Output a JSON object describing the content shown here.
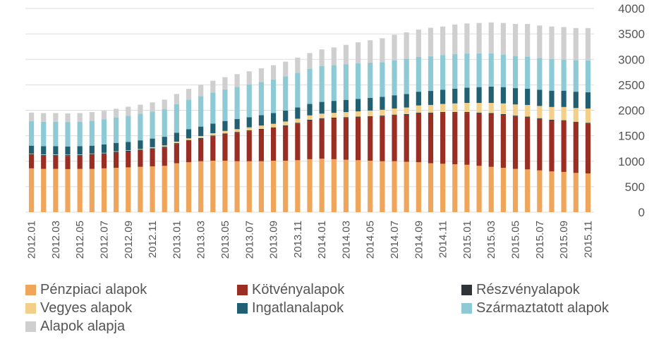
{
  "chart_data": {
    "type": "bar",
    "stacked": true,
    "title": "",
    "xlabel": "",
    "ylabel": "",
    "ylim": [
      0,
      4000
    ],
    "yticks": [
      0,
      500,
      1000,
      1500,
      2000,
      2500,
      3000,
      3500,
      4000
    ],
    "grid": true,
    "legend_position": "bottom",
    "categories": [
      "2012.01",
      "2012.02",
      "2012.03",
      "2012.04",
      "2012.05",
      "2012.06",
      "2012.07",
      "2012.08",
      "2012.09",
      "2012.10",
      "2012.11",
      "2012.12",
      "2013.01",
      "2013.02",
      "2013.03",
      "2013.04",
      "2013.05",
      "2013.06",
      "2013.07",
      "2013.08",
      "2013.09",
      "2013.10",
      "2013.11",
      "2013.12",
      "2014.01",
      "2014.02",
      "2014.03",
      "2014.04",
      "2014.05",
      "2014.06",
      "2014.07",
      "2014.08",
      "2014.09",
      "2014.10",
      "2014.11",
      "2014.12",
      "2015.01",
      "2015.02",
      "2015.03",
      "2015.04",
      "2015.05",
      "2015.06",
      "2015.07",
      "2015.08",
      "2015.09",
      "2015.10",
      "2015.11"
    ],
    "xtick_labels": [
      "2012.01",
      "2012.03",
      "2012.05",
      "2012.07",
      "2012.09",
      "2012.11",
      "2013.01",
      "2013.03",
      "2013.05",
      "2013.07",
      "2013.09",
      "2013.11",
      "2014.01",
      "2014.03",
      "2014.05",
      "2014.07",
      "2014.09",
      "2014.11",
      "2015.01",
      "2015.03",
      "2015.05",
      "2015.07",
      "2015.09",
      "2015.11"
    ],
    "series": [
      {
        "name": "Pénzpiaci alapok",
        "color": "#EFA65A",
        "values": [
          860,
          850,
          850,
          845,
          850,
          850,
          860,
          870,
          880,
          890,
          900,
          910,
          960,
          980,
          1000,
          1010,
          1010,
          1000,
          1000,
          1000,
          1010,
          1010,
          1020,
          1040,
          1050,
          1040,
          1030,
          1020,
          1010,
          1000,
          1000,
          990,
          980,
          960,
          950,
          940,
          930,
          910,
          890,
          870,
          850,
          840,
          820,
          800,
          790,
          770,
          760
        ]
      },
      {
        "name": "Kötvényalapok",
        "color": "#9A2E22",
        "values": [
          260,
          260,
          260,
          260,
          260,
          270,
          280,
          300,
          310,
          320,
          340,
          360,
          380,
          420,
          440,
          480,
          520,
          560,
          590,
          620,
          640,
          680,
          720,
          760,
          780,
          800,
          820,
          840,
          860,
          880,
          900,
          920,
          960,
          980,
          1000,
          1010,
          1020,
          1030,
          1040,
          1040,
          1030,
          1020,
          1010,
          1000,
          1000,
          990,
          980
        ]
      },
      {
        "name": "Részvényalapok",
        "color": "#2E3438",
        "values": [
          15,
          15,
          15,
          15,
          15,
          15,
          15,
          15,
          15,
          15,
          15,
          15,
          15,
          15,
          15,
          15,
          15,
          15,
          15,
          15,
          15,
          15,
          15,
          15,
          15,
          15,
          15,
          15,
          15,
          15,
          15,
          15,
          15,
          15,
          15,
          15,
          15,
          15,
          15,
          15,
          15,
          15,
          15,
          15,
          15,
          15,
          15
        ]
      },
      {
        "name": "Vegyes alapok",
        "color": "#F2D08A",
        "values": [
          10,
          10,
          10,
          10,
          10,
          10,
          10,
          10,
          10,
          15,
          20,
          25,
          30,
          35,
          40,
          45,
          50,
          55,
          60,
          65,
          70,
          75,
          80,
          85,
          90,
          95,
          100,
          105,
          110,
          115,
          120,
          130,
          140,
          150,
          160,
          170,
          180,
          190,
          200,
          210,
          220,
          230,
          240,
          250,
          260,
          270,
          280
        ]
      },
      {
        "name": "Ingatlanalapok",
        "color": "#215F72",
        "values": [
          160,
          160,
          160,
          160,
          160,
          160,
          165,
          165,
          165,
          170,
          170,
          170,
          175,
          180,
          185,
          190,
          195,
          200,
          200,
          205,
          210,
          215,
          220,
          225,
          230,
          235,
          240,
          245,
          250,
          255,
          260,
          265,
          270,
          275,
          280,
          290,
          300,
          310,
          320,
          320,
          320,
          320,
          320,
          320,
          320,
          320,
          320
        ]
      },
      {
        "name": "Származtatott alapok",
        "color": "#8DCAD6",
        "values": [
          480,
          480,
          480,
          480,
          480,
          490,
          490,
          500,
          510,
          520,
          530,
          540,
          560,
          580,
          600,
          610,
          620,
          630,
          640,
          650,
          660,
          670,
          680,
          690,
          700,
          700,
          700,
          700,
          690,
          680,
          690,
          690,
          680,
          680,
          680,
          680,
          670,
          660,
          650,
          640,
          630,
          630,
          620,
          620,
          610,
          620,
          620
        ]
      },
      {
        "name": "Alapok alapja",
        "color": "#CFCFCF",
        "values": [
          170,
          170,
          170,
          170,
          170,
          170,
          170,
          170,
          180,
          180,
          180,
          190,
          200,
          210,
          220,
          230,
          240,
          250,
          260,
          270,
          280,
          290,
          300,
          310,
          330,
          350,
          380,
          410,
          440,
          470,
          500,
          520,
          540,
          560,
          560,
          580,
          590,
          600,
          610,
          620,
          630,
          640,
          640,
          640,
          640,
          630,
          640
        ]
      }
    ]
  }
}
